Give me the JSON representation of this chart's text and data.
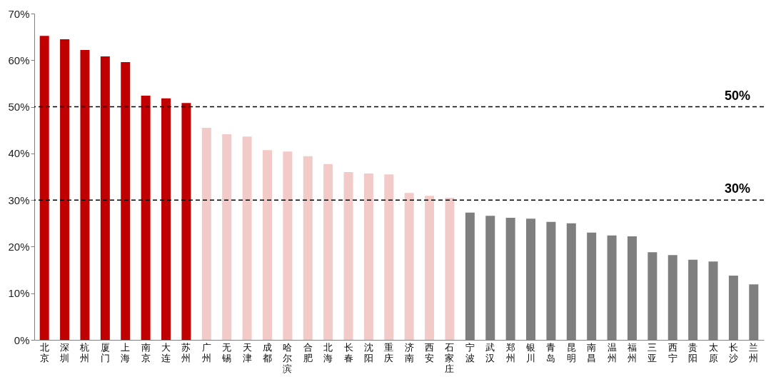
{
  "chart_data": {
    "type": "bar",
    "categories": [
      "北京",
      "深圳",
      "杭州",
      "厦门",
      "上海",
      "南京",
      "大连",
      "苏州",
      "广州",
      "无锡",
      "天津",
      "成都",
      "哈尔滨",
      "合肥",
      "北海",
      "长春",
      "沈阳",
      "重庆",
      "济南",
      "西安",
      "石家庄",
      "宁波",
      "武汉",
      "郑州",
      "银川",
      "青岛",
      "昆明",
      "南昌",
      "温州",
      "福州",
      "三亚",
      "西宁",
      "贵阳",
      "太原",
      "长沙",
      "兰州"
    ],
    "values": [
      65.2,
      64.5,
      62.2,
      60.8,
      59.6,
      52.4,
      51.8,
      50.8,
      45.5,
      44.1,
      43.6,
      40.7,
      40.4,
      39.4,
      37.7,
      36.0,
      35.7,
      35.5,
      31.5,
      30.9,
      30.5,
      27.3,
      26.6,
      26.2,
      26.0,
      25.3,
      25.0,
      23.0,
      22.4,
      22.2,
      18.8,
      18.2,
      17.2,
      16.8,
      13.8,
      11.9
    ],
    "colors": [
      "#c00000",
      "#c00000",
      "#c00000",
      "#c00000",
      "#c00000",
      "#c00000",
      "#c00000",
      "#c00000",
      "#f2cac8",
      "#f2cac8",
      "#f2cac8",
      "#f2cac8",
      "#f2cac8",
      "#f2cac8",
      "#f2cac8",
      "#f2cac8",
      "#f2cac8",
      "#f2cac8",
      "#f2cac8",
      "#f2cac8",
      "#f2cac8",
      "#7f7f7f",
      "#7f7f7f",
      "#7f7f7f",
      "#7f7f7f",
      "#7f7f7f",
      "#7f7f7f",
      "#7f7f7f",
      "#7f7f7f",
      "#7f7f7f",
      "#7f7f7f",
      "#7f7f7f",
      "#7f7f7f",
      "#7f7f7f",
      "#7f7f7f",
      "#7f7f7f"
    ],
    "ylim": [
      0,
      70
    ],
    "yticks": [
      {
        "value": 0,
        "label": "0%"
      },
      {
        "value": 10,
        "label": "10%"
      },
      {
        "value": 20,
        "label": "20%"
      },
      {
        "value": 30,
        "label": "30%"
      },
      {
        "value": 40,
        "label": "40%"
      },
      {
        "value": 50,
        "label": "50%"
      },
      {
        "value": 60,
        "label": "60%"
      },
      {
        "value": 70,
        "label": "70%"
      }
    ],
    "ref_lines": [
      {
        "axis": "y",
        "value": 50,
        "label": "50%",
        "color": "#000000",
        "line_style": "dashed"
      },
      {
        "axis": "y",
        "value": 30,
        "label": "30%",
        "color": "#000000",
        "line_style": "dashed"
      }
    ],
    "grid": false
  }
}
